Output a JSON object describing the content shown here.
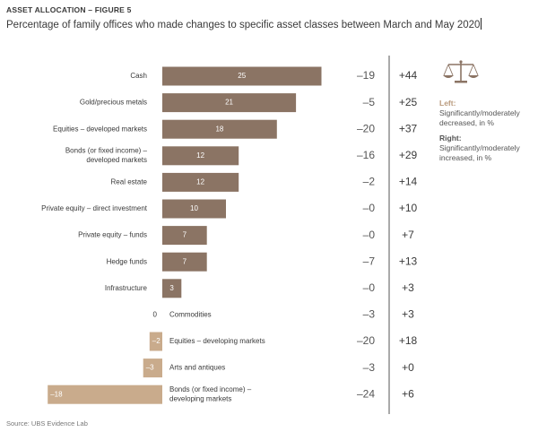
{
  "header": {
    "figure_label": "ASSET ALLOCATION – FIGURE 5",
    "title": "Percentage of family offices who made changes to specific asset classes between March and May 2020"
  },
  "legend": {
    "left_heading": "Left:",
    "left_text": "Significantly/moderately decreased, in %",
    "right_heading": "Right:",
    "right_text": "Significantly/moderately increased, in %",
    "icon": "balance-scale-icon"
  },
  "source": "Source: UBS Evidence Lab",
  "colors": {
    "bar_positive": "#8b7464",
    "bar_negative": "#c9ab8c",
    "divider": "#555555",
    "text": "#3a3a3a",
    "muted_text": "#555555"
  },
  "chart_data": {
    "type": "bar",
    "orientation": "horizontal",
    "series": [
      {
        "values": [
          25,
          21,
          18,
          12,
          12,
          10,
          7,
          7,
          3,
          0,
          -2,
          -3,
          -18
        ]
      }
    ],
    "categories": [
      "Cash",
      "Gold/precious metals",
      "Equities – developed markets",
      "Bonds (or fixed income) –\ndeveloped markets",
      "Real estate",
      "Private equity – direct investment",
      "Private equity – funds",
      "Hedge funds",
      "Infrastructure",
      "Commodities",
      "Equities – developing markets",
      "Arts and antiques",
      "Bonds (or fixed income) –\ndeveloping markets"
    ],
    "bar_labels": [
      "25",
      "21",
      "18",
      "12",
      "12",
      "10",
      "7",
      "7",
      "3",
      "0",
      "–2",
      "–3",
      "–18"
    ],
    "decreased": [
      "–19",
      "–5",
      "–20",
      "–16",
      "–2",
      "–0",
      "–0",
      "–7",
      "–0",
      "–3",
      "–20",
      "–3",
      "–24"
    ],
    "increased": [
      "+44",
      "+25",
      "+37",
      "+29",
      "+14",
      "+10",
      "+7",
      "+13",
      "+3",
      "+3",
      "+18",
      "+0",
      "+6"
    ],
    "title": "Percentage of family offices who made changes to specific asset classes between March and May 2020",
    "xlabel": "",
    "ylabel": "",
    "grid": false
  }
}
